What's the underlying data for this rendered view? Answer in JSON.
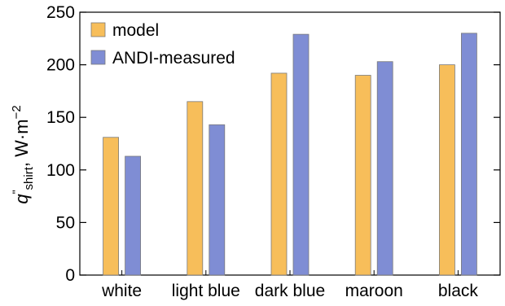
{
  "chart_data": {
    "type": "bar",
    "categories": [
      "white",
      "light blue",
      "dark blue",
      "maroon",
      "black"
    ],
    "series": [
      {
        "name": "model",
        "values": [
          131,
          165,
          192,
          190,
          200
        ],
        "color": "#F7BE5A"
      },
      {
        "name": "ANDI-measured",
        "values": [
          113,
          143,
          229,
          203,
          230
        ],
        "color": "#7F8DD4"
      }
    ],
    "ylabel": "q\"shirt, W·m−2",
    "ylabel_parts": {
      "symbol": "q",
      "prime": "\"",
      "subscript": "shirt",
      "units": ", W·m",
      "exponent": "−2"
    },
    "yticks": [
      0,
      50,
      100,
      150,
      200,
      250
    ],
    "ylim": [
      0,
      250
    ],
    "grid": false,
    "legend_position": "top-left"
  }
}
